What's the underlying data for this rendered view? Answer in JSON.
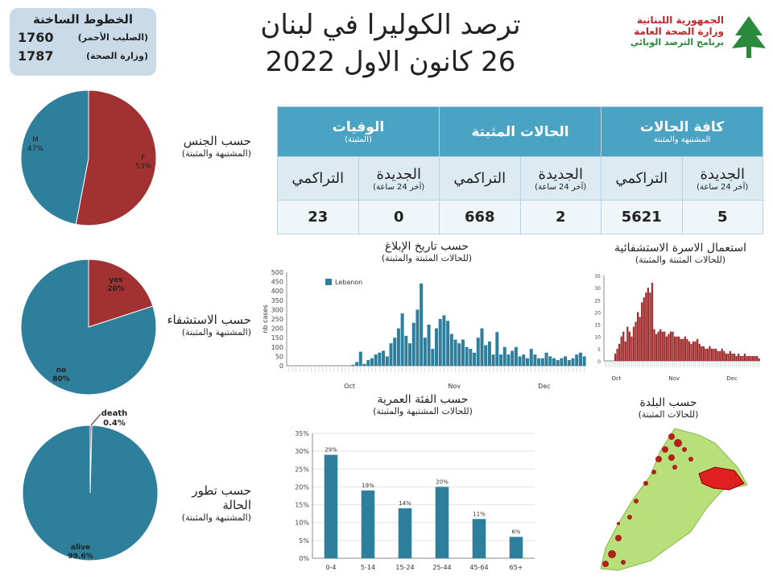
{
  "hotline": {
    "title": "الخطوط الساخنة",
    "rows": [
      {
        "number": "1760",
        "label": "(الصليب الأحمر)"
      },
      {
        "number": "1787",
        "label": "(وزارة الصحة)"
      }
    ]
  },
  "title": {
    "line1": "ترصد الكوليرا في لبنان",
    "line2": "26 كانون الاول 2022"
  },
  "logo": {
    "line1": "الجمهورية اللبنانية",
    "line2": "وزارة الصحة العامة",
    "line3": "برنامج الترصد الوبائي"
  },
  "colors": {
    "red": "#a23232",
    "blue": "#2e7f9c",
    "header": "#4ba3c3"
  },
  "stats": {
    "groups": [
      {
        "title": "كافة الحالات",
        "sub": "المشتبهة والمثبتة"
      },
      {
        "title": "الحالات المثبتة",
        "sub": ""
      },
      {
        "title": "الوفيات",
        "sub": "(المثبتة)"
      }
    ],
    "col_new": "الجديدة",
    "col_new_sub": "(آخر 24 ساعة)",
    "col_cum": "التراكمي",
    "values": {
      "all_new": "5",
      "all_cum": "5621",
      "conf_new": "2",
      "conf_cum": "668",
      "death_new": "0",
      "death_cum": "23"
    }
  },
  "labels": {
    "gender": {
      "title": "حسب الجنس",
      "sub": "(المشتبهة والمثبتة)"
    },
    "hosp": {
      "title": "حسب الاستشفاء",
      "sub": "(المشتبهة والمثبتة)"
    },
    "outcome": {
      "title": "حسب تطور الحالة",
      "sub": "(المشتبهة والمثبتة)"
    },
    "report": {
      "title": "حسب تاريخ الإبلاغ",
      "sub": "(للحالات المثبتة والمثبتة)"
    },
    "bed": {
      "title": "استعمال الاسرة الاستشفائية",
      "sub": "(للحالات المثبتة والمثبتة)"
    },
    "age": {
      "title": "حسب الفئة العمرية",
      "sub": "(للحالات المشتبهة والمثبتة)"
    },
    "town": {
      "title": "حسب البلدة",
      "sub": "(للحالات المثبتة)"
    }
  },
  "chart_data": [
    {
      "type": "pie",
      "id": "gender",
      "slices": [
        {
          "label": "F",
          "pct_label": "53%",
          "value": 53,
          "color": "#a23232"
        },
        {
          "label": "M",
          "pct_label": "47%",
          "value": 47,
          "color": "#2e7f9c"
        }
      ]
    },
    {
      "type": "pie",
      "id": "hosp",
      "slices": [
        {
          "label": "yes",
          "pct_label": "20%",
          "value": 20,
          "color": "#a23232"
        },
        {
          "label": "no",
          "pct_label": "80%",
          "value": 80,
          "color": "#2e7f9c"
        }
      ]
    },
    {
      "type": "pie",
      "id": "outcome",
      "slices": [
        {
          "label": "death",
          "pct_label": "0.4%",
          "value": 0.4,
          "color": "#a23232"
        },
        {
          "label": "alive",
          "pct_label": "99.6%",
          "value": 99.6,
          "color": "#2e7f9c"
        }
      ]
    },
    {
      "type": "bar",
      "id": "report",
      "legend": "Lebanon",
      "ylabel": "nb cases",
      "yticks": [
        0,
        50,
        100,
        150,
        200,
        250,
        300,
        350,
        400,
        450,
        500
      ],
      "ylim": [
        0,
        500
      ],
      "month_labels": [
        "Oct",
        "Nov",
        "Dec"
      ],
      "values": [
        0,
        0,
        0,
        0,
        0,
        0,
        0,
        0,
        0,
        0,
        0,
        0,
        0,
        0,
        0,
        0,
        0,
        5,
        20,
        75,
        10,
        30,
        40,
        60,
        70,
        80,
        50,
        120,
        150,
        200,
        280,
        160,
        120,
        230,
        300,
        440,
        150,
        220,
        90,
        200,
        250,
        270,
        240,
        170,
        140,
        120,
        140,
        100,
        90,
        70,
        150,
        200,
        110,
        130,
        60,
        180,
        60,
        100,
        60,
        80,
        100,
        50,
        60,
        40,
        90,
        60,
        40,
        40,
        70,
        50,
        40,
        30,
        40,
        50,
        30,
        40,
        60,
        70,
        50
      ],
      "color": "#2e7f9c"
    },
    {
      "type": "bar",
      "id": "bed",
      "yticks": [
        0,
        5,
        10,
        15,
        20,
        25,
        30,
        35
      ],
      "ylim": [
        0,
        35
      ],
      "month_labels": [
        "Oct",
        "Nov",
        "Dec"
      ],
      "values": [
        0,
        0,
        0,
        0,
        0,
        3,
        5,
        7,
        10,
        12,
        8,
        14,
        12,
        10,
        14,
        16,
        20,
        18,
        24,
        26,
        28,
        30,
        28,
        32,
        13,
        11,
        12,
        13,
        12,
        12,
        10,
        11,
        12,
        12,
        10,
        10,
        10,
        9,
        9,
        10,
        9,
        8,
        7,
        8,
        8,
        9,
        7,
        6,
        6,
        5,
        5,
        6,
        5,
        5,
        5,
        4,
        4,
        5,
        4,
        3,
        3,
        4,
        3,
        3,
        2,
        3,
        2,
        2,
        3,
        2,
        2,
        2,
        2,
        2,
        2,
        1
      ],
      "color": "#a23232"
    },
    {
      "type": "bar",
      "id": "age",
      "categories": [
        "0-4",
        "5-14",
        "15-24",
        "25-44",
        "45-64",
        "65+"
      ],
      "values": [
        29,
        19,
        14,
        20,
        11,
        6
      ],
      "value_labels": [
        "29%",
        "19%",
        "14%",
        "20%",
        "11%",
        "6%"
      ],
      "ytick_labels": [
        "0%",
        "5%",
        "10%",
        "15%",
        "20%",
        "25%",
        "30%",
        "35%"
      ],
      "ylim": [
        0,
        35
      ],
      "color": "#2e7f9c"
    }
  ]
}
